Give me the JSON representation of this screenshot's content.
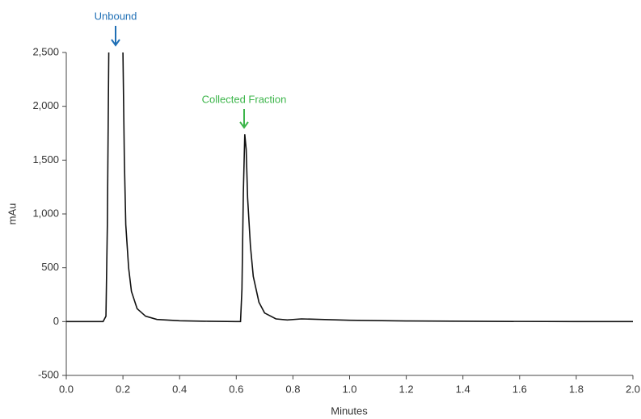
{
  "chart_data": {
    "type": "line",
    "x_label": "Minutes",
    "y_label": "mAu",
    "x": [
      0,
      0.13,
      0.14,
      0.145,
      0.15,
      0.175,
      0.2,
      0.205,
      0.21,
      0.22,
      0.23,
      0.25,
      0.28,
      0.32,
      0.4,
      0.5,
      0.6,
      0.615,
      0.62,
      0.625,
      0.63,
      0.635,
      0.64,
      0.65,
      0.66,
      0.68,
      0.7,
      0.74,
      0.78,
      0.83,
      0.9,
      1.0,
      1.2,
      1.5,
      1.8,
      2.0
    ],
    "series": [
      {
        "color": "#111111",
        "values": [
          0,
          0,
          50,
          900,
          2500,
          null,
          2500,
          1500,
          900,
          500,
          280,
          120,
          50,
          20,
          8,
          3,
          0,
          0,
          300,
          1200,
          1740,
          1600,
          1150,
          700,
          420,
          180,
          80,
          25,
          15,
          25,
          20,
          12,
          6,
          2,
          0,
          0
        ]
      }
    ],
    "annotations": [
      {
        "text": "Unbound",
        "color": "#1f6fb5"
      },
      {
        "text": "Collected Fraction",
        "color": "#3cb54a"
      }
    ],
    "xlim": [
      0,
      2
    ],
    "ylim": [
      -500,
      2500
    ],
    "xticks": [
      {
        "value": 0,
        "label": "0.0"
      },
      0.2,
      0.4,
      0.6,
      0.8,
      {
        "value": 1,
        "label": "1.0"
      },
      1.2,
      1.4,
      1.6,
      1.8,
      {
        "value": 2,
        "label": "2.0"
      }
    ],
    "yticks": [
      -500,
      0,
      500,
      {
        "value": 1000,
        "label": "1,000"
      },
      {
        "value": 1500,
        "label": "1,500"
      },
      {
        "value": 2000,
        "label": "2,000"
      },
      {
        "value": 2500,
        "label": "2,500"
      }
    ],
    "grid": false
  }
}
